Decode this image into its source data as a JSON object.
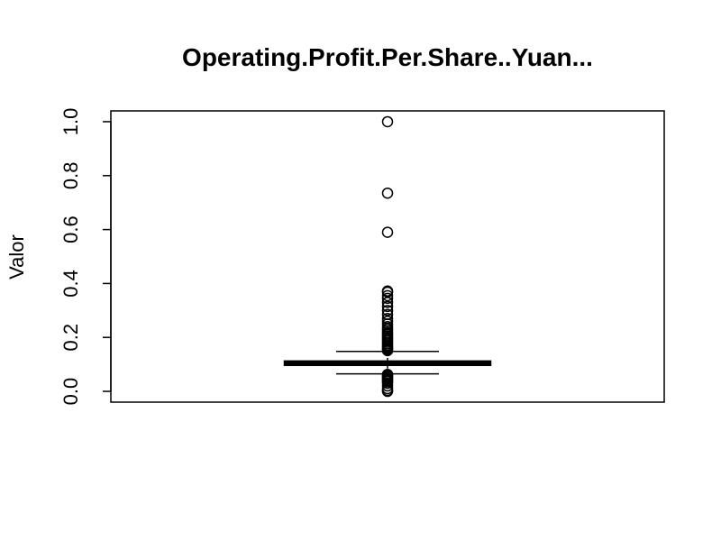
{
  "chart_data": {
    "type": "boxplot",
    "title": "Operating.Profit.Per.Share..Yuan...",
    "xlabel": "",
    "ylabel": "Valor",
    "ylim": [
      -0.04,
      1.04
    ],
    "yticks": [
      0.0,
      0.2,
      0.4,
      0.6,
      0.8,
      1.0
    ],
    "ytick_labels": [
      "0.0",
      "0.2",
      "0.4",
      "0.6",
      "0.8",
      "1.0"
    ],
    "grid": false,
    "legend": "none",
    "box": {
      "whisker_low": 0.065,
      "q1": 0.098,
      "median": 0.102,
      "q3": 0.111,
      "whisker_high": 0.148
    },
    "outliers": [
      1.0,
      0.735,
      0.59,
      0.372,
      0.368,
      0.355,
      0.345,
      0.33,
      0.315,
      0.3,
      0.285,
      0.27,
      0.26,
      0.25,
      0.24,
      0.232,
      0.225,
      0.218,
      0.212,
      0.206,
      0.2,
      0.194,
      0.188,
      0.182,
      0.176,
      0.17,
      0.165,
      0.16,
      0.155,
      0.151,
      0.063,
      0.06,
      0.056,
      0.052,
      0.048,
      0.044,
      0.04,
      0.036,
      0.03,
      0.02,
      0.01,
      0.003,
      0.0
    ],
    "colors": {
      "stroke": "#000000",
      "background": "#ffffff"
    }
  }
}
